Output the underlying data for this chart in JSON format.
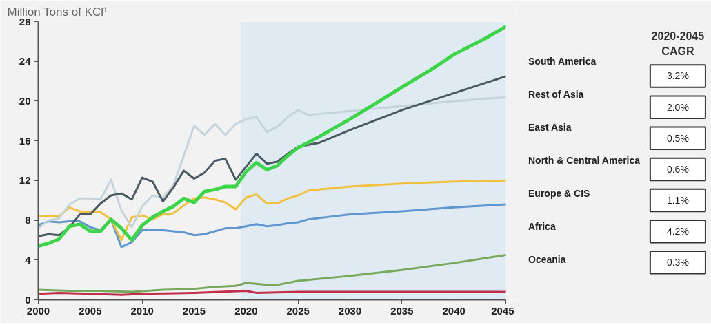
{
  "chart_data": {
    "type": "line",
    "ylabel": "Million Tons of KCl¹",
    "legend_title": "2020-2045 CAGR",
    "legend": "right",
    "grid": false,
    "xlim": [
      2000,
      2045
    ],
    "xticks": [
      2000,
      2005,
      2010,
      2015,
      2020,
      2025,
      2030,
      2035,
      2040,
      2045
    ],
    "ylim": [
      0,
      28
    ],
    "yticks": [
      0,
      4,
      8,
      12,
      16,
      20,
      24,
      28
    ],
    "bands": [
      {
        "axis": "x",
        "from": 2019.5,
        "to": 2045,
        "color": "#dfeaf3"
      }
    ],
    "annotations": [
      "3.2%",
      "2.0%",
      "0.5%",
      "0.6%",
      "1.1%",
      "4.2%",
      "0.3%"
    ],
    "series": [
      {
        "name": "South America",
        "color": "#3dd44a",
        "x": [
          2000,
          2001,
          2002,
          2003,
          2004,
          2005,
          2006,
          2007,
          2008,
          2009,
          2010,
          2011,
          2012,
          2013,
          2014,
          2015,
          2016,
          2017,
          2018,
          2019,
          2020,
          2021,
          2022,
          2023,
          2024,
          2025,
          2027,
          2030,
          2033,
          2035,
          2038,
          2040,
          2043,
          2045
        ],
        "values": [
          5.4,
          5.7,
          6.1,
          7.4,
          7.6,
          6.9,
          6.9,
          8.1,
          7.2,
          6.0,
          7.5,
          8.3,
          8.9,
          9.4,
          10.2,
          9.8,
          10.9,
          11.1,
          11.4,
          11.4,
          12.9,
          13.8,
          13.1,
          13.5,
          14.5,
          15.3,
          16.4,
          18.2,
          20.1,
          21.4,
          23.3,
          24.7,
          26.3,
          27.5
        ]
      },
      {
        "name": "Rest of Asia",
        "color": "#4a5a63",
        "x": [
          2000,
          2001,
          2002,
          2003,
          2004,
          2005,
          2006,
          2007,
          2008,
          2009,
          2010,
          2011,
          2012,
          2013,
          2014,
          2015,
          2016,
          2017,
          2018,
          2019,
          2020,
          2021,
          2022,
          2023,
          2024,
          2025,
          2027,
          2030,
          2035,
          2040,
          2045
        ],
        "values": [
          6.4,
          6.6,
          6.5,
          7.3,
          8.6,
          8.6,
          9.7,
          10.5,
          10.7,
          10.1,
          12.3,
          11.9,
          9.9,
          11.3,
          13.0,
          12.2,
          12.8,
          14.0,
          14.2,
          12.1,
          13.4,
          14.7,
          13.7,
          13.9,
          14.7,
          15.4,
          15.8,
          17.1,
          19.1,
          20.8,
          22.5
        ]
      },
      {
        "name": "East Asia",
        "color": "#c5d3da",
        "x": [
          2000,
          2001,
          2002,
          2003,
          2004,
          2005,
          2006,
          2007,
          2008,
          2009,
          2010,
          2011,
          2012,
          2013,
          2014,
          2015,
          2016,
          2017,
          2018,
          2019,
          2020,
          2021,
          2022,
          2023,
          2024,
          2025,
          2026,
          2030,
          2035,
          2040,
          2045
        ],
        "values": [
          7.2,
          8.0,
          8.2,
          9.6,
          10.2,
          10.2,
          10.1,
          12.1,
          9.0,
          7.3,
          9.4,
          10.5,
          10.3,
          11.5,
          14.5,
          17.5,
          16.6,
          17.7,
          16.6,
          17.7,
          18.2,
          18.4,
          16.9,
          17.4,
          18.4,
          19.1,
          18.6,
          19.0,
          19.5,
          20.0,
          20.4
        ]
      },
      {
        "name": "North & Central America",
        "color": "#f2c040",
        "x": [
          2000,
          2001,
          2002,
          2003,
          2004,
          2005,
          2006,
          2007,
          2008,
          2009,
          2010,
          2011,
          2012,
          2013,
          2014,
          2015,
          2016,
          2017,
          2018,
          2019,
          2020,
          2021,
          2022,
          2023,
          2024,
          2025,
          2026,
          2030,
          2035,
          2040,
          2045
        ],
        "values": [
          8.4,
          8.4,
          8.4,
          9.3,
          8.9,
          8.8,
          8.8,
          8.1,
          6.0,
          8.3,
          8.5,
          8.1,
          8.6,
          8.7,
          9.5,
          10.2,
          10.3,
          10.1,
          9.8,
          9.1,
          10.3,
          10.6,
          9.7,
          9.7,
          10.2,
          10.5,
          11.0,
          11.4,
          11.7,
          11.9,
          12.0
        ]
      },
      {
        "name": "Europe & CIS",
        "color": "#5f96cf",
        "x": [
          2000,
          2001,
          2002,
          2003,
          2004,
          2005,
          2006,
          2007,
          2008,
          2009,
          2010,
          2011,
          2012,
          2013,
          2014,
          2015,
          2016,
          2017,
          2018,
          2019,
          2020,
          2021,
          2022,
          2023,
          2024,
          2025,
          2026,
          2030,
          2035,
          2040,
          2045
        ],
        "values": [
          7.5,
          7.9,
          7.8,
          7.9,
          7.9,
          7.3,
          7.0,
          8.1,
          5.3,
          5.8,
          7.0,
          7.0,
          7.0,
          6.9,
          6.8,
          6.5,
          6.6,
          6.9,
          7.2,
          7.2,
          7.4,
          7.6,
          7.4,
          7.5,
          7.7,
          7.8,
          8.1,
          8.6,
          8.9,
          9.3,
          9.6
        ]
      },
      {
        "name": "Africa",
        "color": "#78a85a",
        "x": [
          2000,
          2003,
          2006,
          2009,
          2012,
          2015,
          2017,
          2019,
          2020,
          2022,
          2023,
          2025,
          2030,
          2035,
          2040,
          2045
        ],
        "values": [
          1.0,
          0.9,
          0.9,
          0.8,
          1.0,
          1.1,
          1.3,
          1.4,
          1.7,
          1.5,
          1.5,
          1.9,
          2.4,
          3.0,
          3.7,
          4.5
        ]
      },
      {
        "name": "Oceania",
        "color": "#c0304a",
        "x": [
          2000,
          2002,
          2005,
          2008,
          2010,
          2015,
          2020,
          2021,
          2025,
          2045
        ],
        "values": [
          0.6,
          0.7,
          0.6,
          0.5,
          0.6,
          0.7,
          0.9,
          0.7,
          0.8,
          0.8
        ]
      }
    ]
  }
}
